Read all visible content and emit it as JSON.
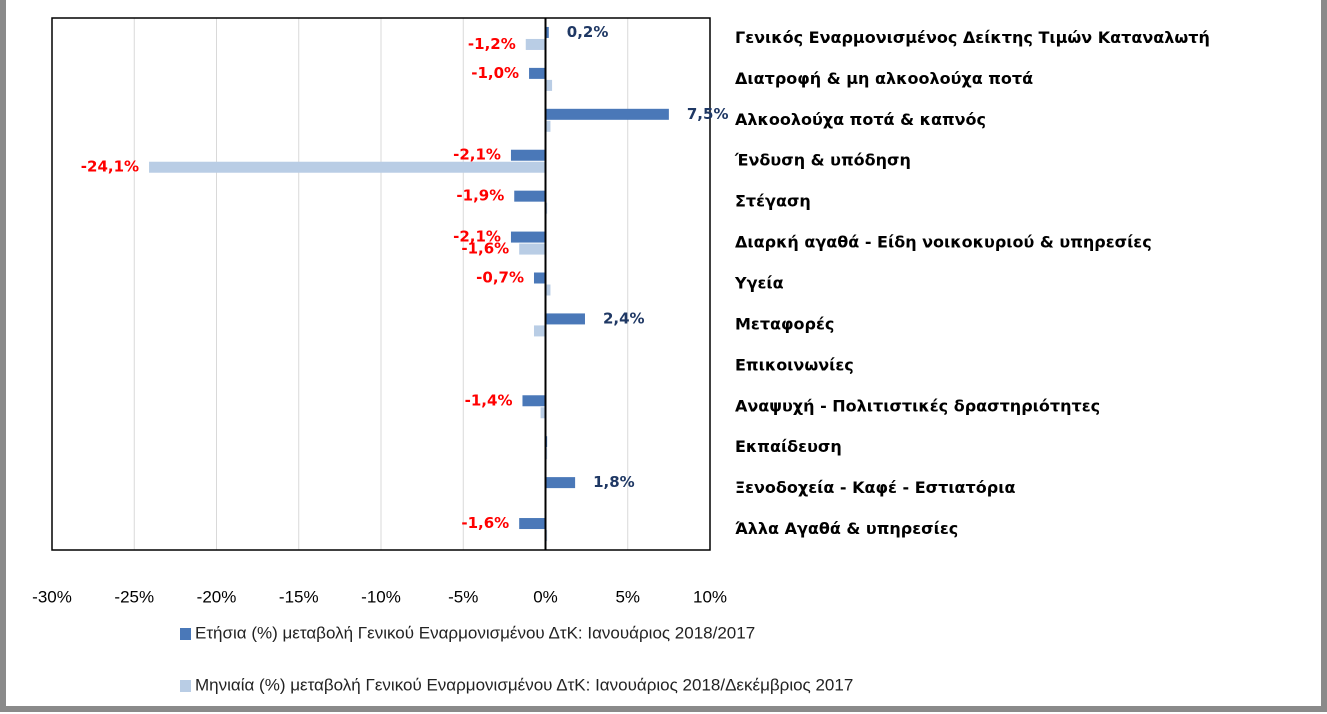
{
  "chart_data": {
    "type": "hbar",
    "categories": [
      "Γενικός Εναρμονισμένος Δείκτης Τιμών Καταναλωτή",
      "Διατροφή & μη αλκοολούχα ποτά",
      "Αλκοολούχα ποτά & καπνός",
      "Ένδυση & υπόδηση",
      "Στέγαση",
      "Διαρκή αγαθά - Είδη νοικοκυριού & υπηρεσίες",
      "Υγεία",
      "Μεταφορές",
      "Επικοινωνίες",
      "Αναψυχή  - Πολιτιστικές δραστηριότητες",
      "Εκπαίδευση",
      "Ξενοδοχεία - Καφέ - Εστιατόρια",
      "Άλλα Αγαθά & υπηρεσίες"
    ],
    "series": [
      {
        "name": "Ετήσια (%) μεταβολή Γενικού Εναρμονισμένου ΔτΚ: Ιανουάριος 2018/2017",
        "color": "#4a78b8",
        "values": [
          0.2,
          -1.0,
          7.5,
          -2.1,
          -1.9,
          -2.1,
          -0.7,
          2.4,
          0.0,
          -1.4,
          0.1,
          1.8,
          -1.6
        ],
        "value_labels": [
          "0,2%",
          "-1,0%",
          "7,5%",
          "-2,1%",
          "-1,9%",
          "-2,1%",
          "-0,7%",
          "2,4%",
          null,
          "-1,4%",
          null,
          "1,8%",
          "-1,6%"
        ]
      },
      {
        "name": "Μηνιαία (%) μεταβολή Γενικού Εναρμονισμένου ΔτΚ: Ιανουάριος 2018/Δεκέμβριος 2017",
        "color": "#b9cde5",
        "values": [
          -1.2,
          0.4,
          0.3,
          -24.1,
          0.1,
          -1.6,
          0.3,
          -0.7,
          0.0,
          -0.3,
          0.1,
          0.0,
          0.1
        ],
        "value_labels": [
          "-1,2%",
          null,
          null,
          "-24,1%",
          null,
          "-1,6%",
          null,
          null,
          null,
          null,
          null,
          null,
          null
        ]
      }
    ],
    "xlim": [
      -30,
      10
    ],
    "xticks": [
      {
        "value": -30,
        "label": "-30%"
      },
      {
        "value": -25,
        "label": "-25%"
      },
      {
        "value": -20,
        "label": "-20%"
      },
      {
        "value": -15,
        "label": "-15%"
      },
      {
        "value": -10,
        "label": "-10%"
      },
      {
        "value": -5,
        "label": "-5%"
      },
      {
        "value": 0,
        "label": "0%"
      },
      {
        "value": 5,
        "label": "5%"
      },
      {
        "value": 10,
        "label": "10%"
      }
    ],
    "grid": true,
    "label_colors": {
      "positive": "#1f3864",
      "negative": "#ff0000"
    }
  }
}
